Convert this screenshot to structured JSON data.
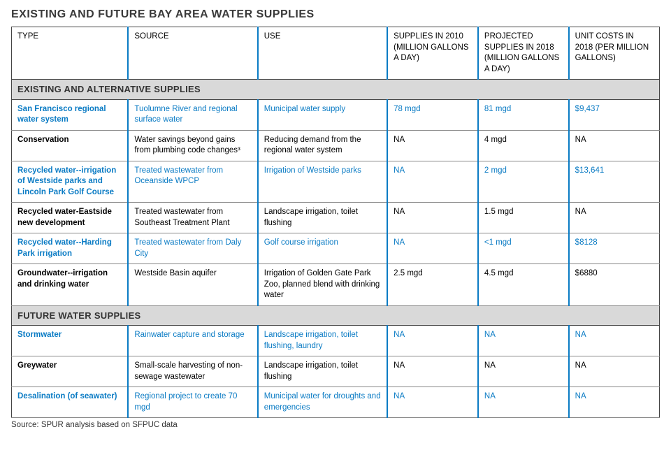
{
  "title": "EXISTING AND FUTURE BAY AREA WATER SUPPLIES",
  "footer": "Source: SPUR analysis based on SFPUC data",
  "columns": [
    "TYPE",
    "SOURCE",
    "USE",
    "SUPPLIES IN 2010 (MILLION GALLONS A DAY)",
    "PROJECTED SUPPLIES IN 2018 (MILLION GALLONS A DAY)",
    "UNIT COSTS IN 2018 (PER MILLION GALLONS)"
  ],
  "sections": [
    {
      "heading": "EXISTING AND ALTERNATIVE SUPPLIES",
      "rows": [
        {
          "blue": true,
          "cells": [
            "San Francisco regional water system",
            "Tuolumne River and regional surface water",
            "Municipal water supply",
            "78 mgd",
            "81 mgd",
            "$9,437"
          ]
        },
        {
          "blue": false,
          "cells": [
            "Conservation",
            "Water savings beyond gains from plumbing code changes³",
            "Reducing demand from the regional water system",
            "NA",
            "4 mgd",
            "NA"
          ]
        },
        {
          "blue": true,
          "cells": [
            "Recycled water--irrigation of Westside parks and Lincoln Park Golf Course",
            "Treated wastewater from Oceanside WPCP",
            "Irrigation of Westside parks",
            "NA",
            "2 mgd",
            "$13,641"
          ]
        },
        {
          "blue": false,
          "cells": [
            "Recycled water-Eastside new development",
            "Treated wastewater from Southeast Treatment Plant",
            "Landscape irrigation, toilet flushing",
            "NA",
            "1.5 mgd",
            "NA"
          ]
        },
        {
          "blue": true,
          "cells": [
            "Recycled water--Harding Park irrigation",
            "Treated wastewater from Daly City",
            "Golf course irrigation",
            "NA",
            "<1 mgd",
            "$8128"
          ]
        },
        {
          "blue": false,
          "cells": [
            "Groundwater--irrigation and drinking water",
            "Westside Basin aquifer",
            "Irrigation of Golden Gate Park Zoo, planned blend with drinking water",
            "2.5 mgd",
            "4.5 mgd",
            "$6880"
          ]
        }
      ]
    },
    {
      "heading": "FUTURE WATER SUPPLIES",
      "rows": [
        {
          "blue": true,
          "cells": [
            "Stormwater",
            "Rainwater capture and storage",
            "Landscape irrigation, toilet flushing, laundry",
            "NA",
            "NA",
            "NA"
          ]
        },
        {
          "blue": false,
          "cells": [
            "Greywater",
            "Small-scale harvesting of non-sewage wastewater",
            "Landscape irrigation, toilet flushing",
            "NA",
            "NA",
            "NA"
          ]
        },
        {
          "blue": true,
          "cells": [
            "Desalination (of seawater)",
            "Regional project to create 70 mgd",
            "Municipal water for droughts and emergencies",
            "NA",
            "NA",
            "NA"
          ]
        }
      ]
    }
  ],
  "style": {
    "accent_color": "#0a7bc4",
    "section_bg": "#d9d9d9",
    "border_color": "#444444",
    "row_border_color": "#888888",
    "title_fontsize": 16,
    "header_fontsize": 11.5,
    "cell_fontsize": 11.5,
    "col_widths_pct": [
      18,
      20,
      20,
      14,
      14,
      14
    ]
  }
}
